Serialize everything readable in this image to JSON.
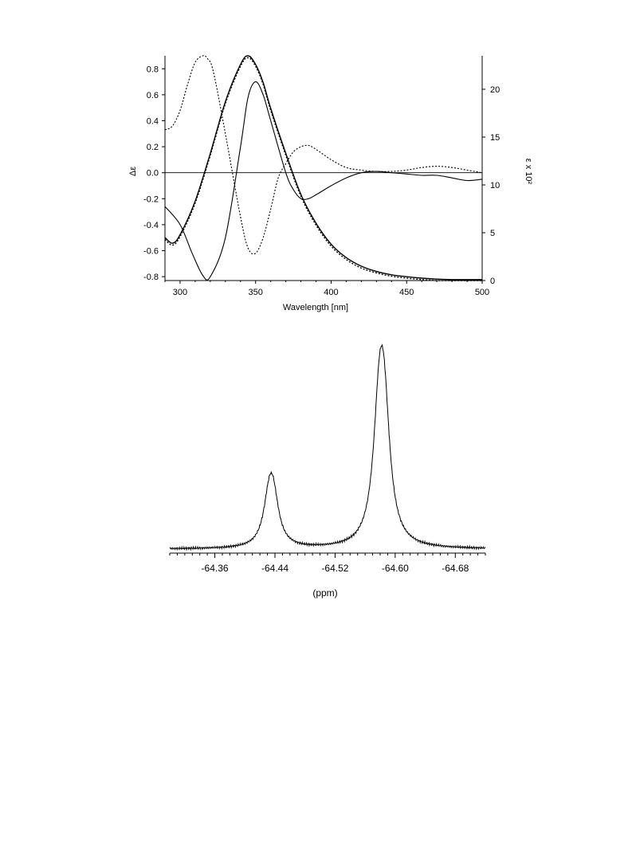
{
  "chart_data": [
    {
      "type": "line",
      "title": "",
      "xlabel": "Wavelength [nm]",
      "ylabel_left": "Δε",
      "ylabel_right": "ε x 10²",
      "xlim": [
        290,
        500
      ],
      "ylim_left": [
        -0.83,
        0.9
      ],
      "ylim_right": [
        0,
        23.5
      ],
      "x_ticks": [
        300,
        350,
        400,
        450,
        500
      ],
      "y_left_ticks": [
        -0.8,
        -0.6,
        -0.4,
        -0.2,
        0.0,
        0.2,
        0.4,
        0.6,
        0.8
      ],
      "y_left_tick_labels": [
        "-0.8",
        "-0.6",
        "-0.4",
        "-0.2",
        "0.0",
        "0.2",
        "0.4",
        "0.6",
        "0.8"
      ],
      "y_right_ticks": [
        0,
        5,
        10,
        15,
        20
      ],
      "y_right_tick_labels": [
        "0",
        "5",
        "10",
        "15",
        "20"
      ],
      "grid": false,
      "series": [
        {
          "style": "solid",
          "axis": "left",
          "x": [
            290,
            300,
            308,
            315,
            320,
            330,
            340,
            345,
            350,
            355,
            360,
            370,
            375,
            380,
            385,
            390,
            400,
            410,
            420,
            430,
            440,
            450,
            460,
            470,
            480,
            490,
            500
          ],
          "y": [
            -0.26,
            -0.4,
            -0.62,
            -0.79,
            -0.8,
            -0.5,
            0.2,
            0.58,
            0.7,
            0.6,
            0.4,
            0.0,
            -0.13,
            -0.2,
            -0.2,
            -0.17,
            -0.1,
            -0.04,
            0.0,
            0.01,
            0.0,
            -0.01,
            -0.02,
            -0.02,
            -0.04,
            -0.06,
            -0.05
          ]
        },
        {
          "style": "dashed",
          "axis": "left",
          "x": [
            290,
            295,
            300,
            305,
            310,
            315,
            318,
            322,
            330,
            340,
            345,
            350,
            355,
            360,
            365,
            370,
            375,
            380,
            385,
            390,
            400,
            410,
            420,
            430,
            440,
            450,
            460,
            470,
            480,
            490,
            500
          ],
          "y": [
            0.33,
            0.36,
            0.48,
            0.68,
            0.85,
            0.9,
            0.88,
            0.78,
            0.3,
            -0.34,
            -0.58,
            -0.62,
            -0.5,
            -0.28,
            -0.04,
            0.07,
            0.16,
            0.2,
            0.21,
            0.18,
            0.1,
            0.04,
            0.02,
            0.01,
            0.01,
            0.02,
            0.04,
            0.05,
            0.04,
            0.02,
            0.0
          ]
        },
        {
          "style": "solid",
          "axis": "right",
          "x": [
            290,
            295,
            300,
            310,
            320,
            330,
            340,
            345,
            350,
            355,
            360,
            370,
            380,
            390,
            400,
            410,
            420,
            430,
            440,
            450,
            460,
            470,
            480,
            490,
            500
          ],
          "y": [
            4.5,
            3.9,
            4.8,
            8.3,
            13.3,
            18.7,
            22.6,
            23.5,
            22.6,
            20.7,
            18.0,
            13.3,
            9.0,
            6.0,
            3.8,
            2.4,
            1.5,
            0.95,
            0.6,
            0.4,
            0.25,
            0.15,
            0.1,
            0.1,
            0.1
          ]
        },
        {
          "style": "dashed",
          "axis": "right",
          "x": [
            290,
            295,
            300,
            310,
            320,
            330,
            340,
            345,
            350,
            355,
            360,
            370,
            380,
            390,
            400,
            410,
            420,
            430,
            440,
            450,
            460,
            470,
            480,
            490,
            500
          ],
          "y": [
            4.3,
            3.7,
            4.6,
            8.1,
            13.1,
            18.5,
            22.4,
            23.3,
            22.4,
            20.5,
            17.8,
            13.1,
            8.8,
            5.8,
            3.6,
            2.2,
            1.3,
            0.8,
            0.45,
            0.25,
            0.1,
            0.0,
            0.0,
            0.0,
            0.0
          ]
        }
      ]
    },
    {
      "type": "line",
      "title": "",
      "xlabel": "(ppm)",
      "ylabel": "",
      "xlim": [
        -64.3,
        -64.72
      ],
      "x_ticks": [
        -64.36,
        -64.44,
        -64.52,
        -64.6,
        -64.68
      ],
      "x_tick_labels": [
        "-64.36",
        "-64.44",
        "-64.52",
        "-64.60",
        "-64.68"
      ],
      "y_axis_shown": false,
      "grid": false,
      "peaks": [
        {
          "center": -64.435,
          "height": 0.37,
          "width": 0.009,
          "split": 0.0055
        },
        {
          "center": -64.582,
          "height": 1.0,
          "width": 0.0095,
          "split": 0.0065
        }
      ],
      "baseline": 0.0
    }
  ]
}
